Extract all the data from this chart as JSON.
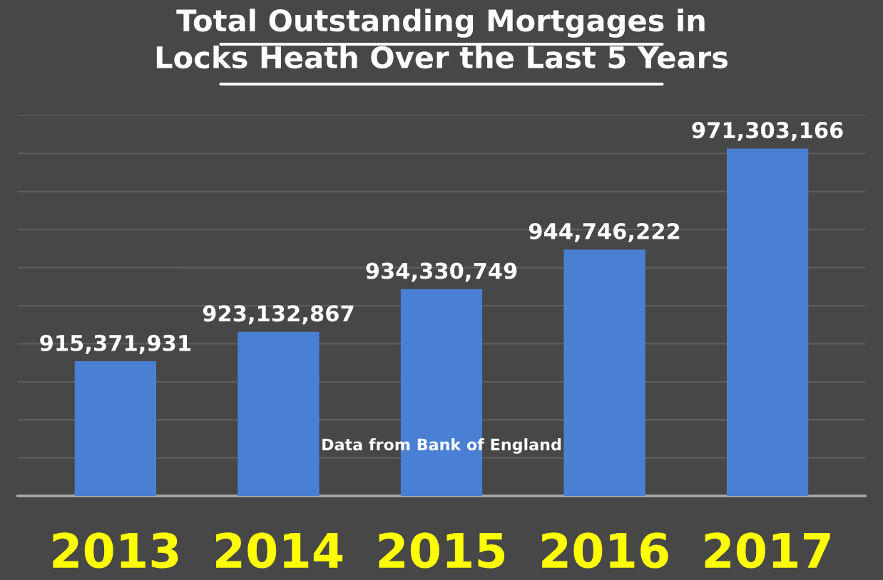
{
  "chart_data": {
    "type": "bar",
    "title": "Total Outstanding Mortgages in\nLocks Heath Over the Last 5 Years",
    "categories": [
      "2013",
      "2014",
      "2015",
      "2016",
      "2017"
    ],
    "values": [
      915371931,
      923132867,
      934330749,
      944746222,
      971303166
    ],
    "color": "#4a80d4",
    "ylim": [
      880000000,
      980000000
    ],
    "value_labels": [
      "915,371,931",
      "923,132,867",
      "934,330,749",
      "944,746,222",
      "971,303,166"
    ],
    "tick_labels": "x",
    "grid": "y",
    "annotations": [
      "Data from Bank of England"
    ]
  }
}
